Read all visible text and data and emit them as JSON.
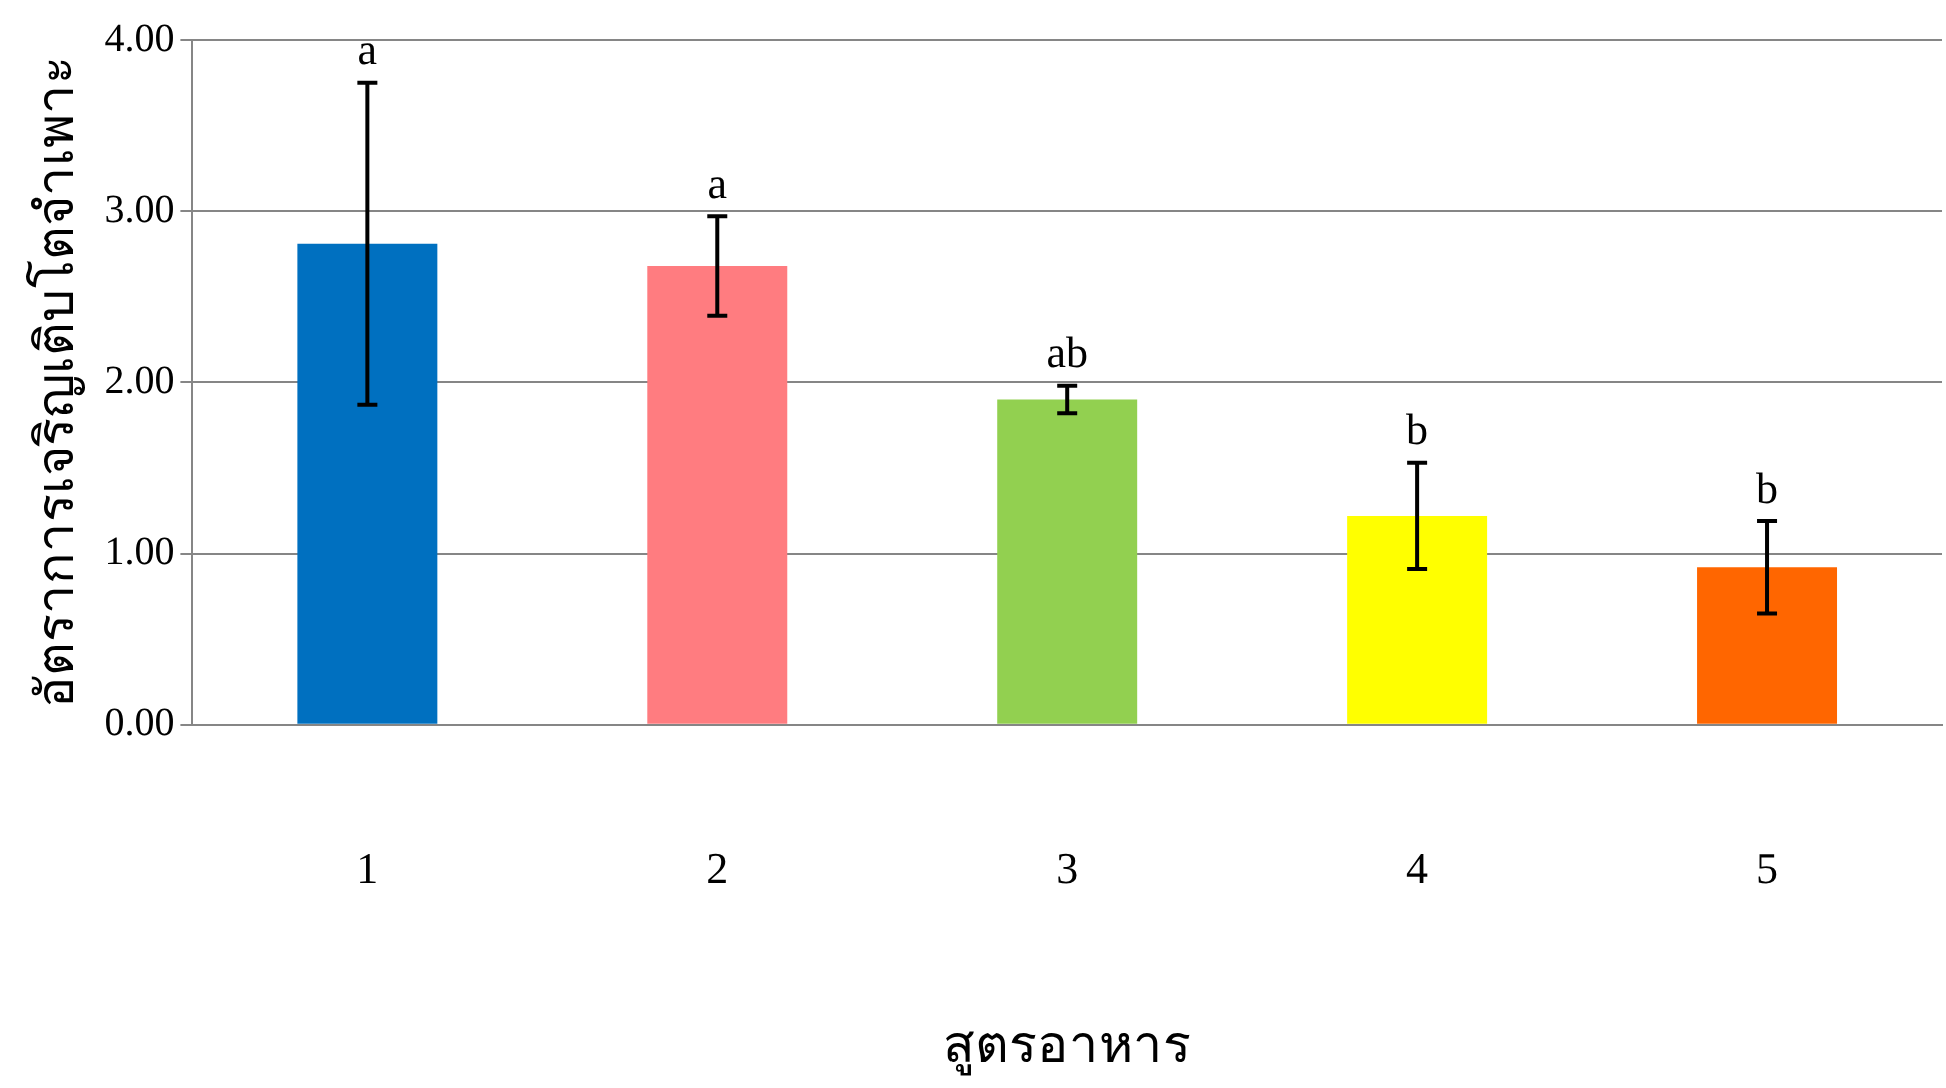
{
  "chart_data": {
    "type": "bar",
    "xlabel": "สูตรอาหาร",
    "ylabel": "อัตราการเจริญเติบโตจำเพาะ",
    "categories": [
      "1",
      "2",
      "3",
      "4",
      "5"
    ],
    "values": [
      2.81,
      2.68,
      1.9,
      1.22,
      0.92
    ],
    "colors": [
      "#0070c0",
      "#ff7c80",
      "#92d050",
      "#ffff00",
      "#ff6600"
    ],
    "errors": [
      0.94,
      0.29,
      0.08,
      0.31,
      0.27
    ],
    "ylim": [
      0,
      4
    ],
    "yticks": [
      {
        "value": 0,
        "label": "0.00"
      },
      {
        "value": 1,
        "label": "1.00"
      },
      {
        "value": 2,
        "label": "2.00"
      },
      {
        "value": 3,
        "label": "3.00"
      },
      {
        "value": 4,
        "label": "4.00"
      }
    ],
    "grid": "y",
    "annotations": [
      {
        "text": "a",
        "x": "1",
        "y": 3.75
      },
      {
        "text": "a",
        "x": "2",
        "y": 2.97
      },
      {
        "text": "ab",
        "x": "3",
        "y": 1.98
      },
      {
        "text": "b",
        "x": "4",
        "y": 1.53
      },
      {
        "text": "b",
        "x": "5",
        "y": 1.19
      }
    ]
  }
}
